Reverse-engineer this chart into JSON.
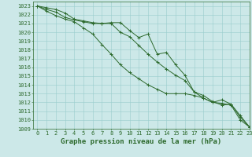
{
  "title": "Graphe pression niveau de la mer (hPa)",
  "x_values": [
    0,
    1,
    2,
    3,
    4,
    5,
    6,
    7,
    8,
    9,
    10,
    11,
    12,
    13,
    14,
    15,
    16,
    17,
    18,
    19,
    20,
    21,
    22,
    23
  ],
  "series": [
    [
      1023,
      1022.8,
      1022.6,
      1022.2,
      1021.5,
      1021.3,
      1021.1,
      1021.0,
      1021.1,
      1021.1,
      1020.2,
      1019.4,
      1019.8,
      1017.5,
      1017.7,
      1016.3,
      1015.1,
      1013.2,
      1012.8,
      1012.1,
      1011.7,
      1011.8,
      1010.5,
      1009.2
    ],
    [
      1023,
      1022.6,
      1022.3,
      1021.7,
      1021.4,
      1021.2,
      1021.0,
      1021.0,
      1021.0,
      1020.0,
      1019.5,
      1018.5,
      1017.5,
      1016.6,
      1015.8,
      1015.1,
      1014.5,
      1013.2,
      1012.5,
      1012.0,
      1011.9,
      1011.7,
      1010.0,
      1009.2
    ],
    [
      1023,
      1022.4,
      1021.9,
      1021.5,
      1021.2,
      1020.5,
      1019.8,
      1018.6,
      1017.5,
      1016.3,
      1015.4,
      1014.7,
      1014.0,
      1013.5,
      1013.0,
      1013.0,
      1013.0,
      1012.8,
      1012.5,
      1012.0,
      1012.3,
      1011.8,
      1010.3,
      1009.2
    ]
  ],
  "line_color": "#2d6a2d",
  "marker_color": "#2d6a2d",
  "bg_color": "#cce8e8",
  "grid_color": "#99cccc",
  "axis_color": "#2d6a2d",
  "text_color": "#2d6a2d",
  "ylim": [
    1009,
    1023.5
  ],
  "xlim": [
    -0.5,
    23
  ],
  "yticks": [
    1009,
    1010,
    1011,
    1012,
    1013,
    1014,
    1015,
    1016,
    1017,
    1018,
    1019,
    1020,
    1021,
    1022,
    1023
  ],
  "xticks": [
    0,
    1,
    2,
    3,
    4,
    5,
    6,
    7,
    8,
    9,
    10,
    11,
    12,
    13,
    14,
    15,
    16,
    17,
    18,
    19,
    20,
    21,
    22,
    23
  ],
  "title_fontsize": 6.5,
  "tick_fontsize": 5.0
}
